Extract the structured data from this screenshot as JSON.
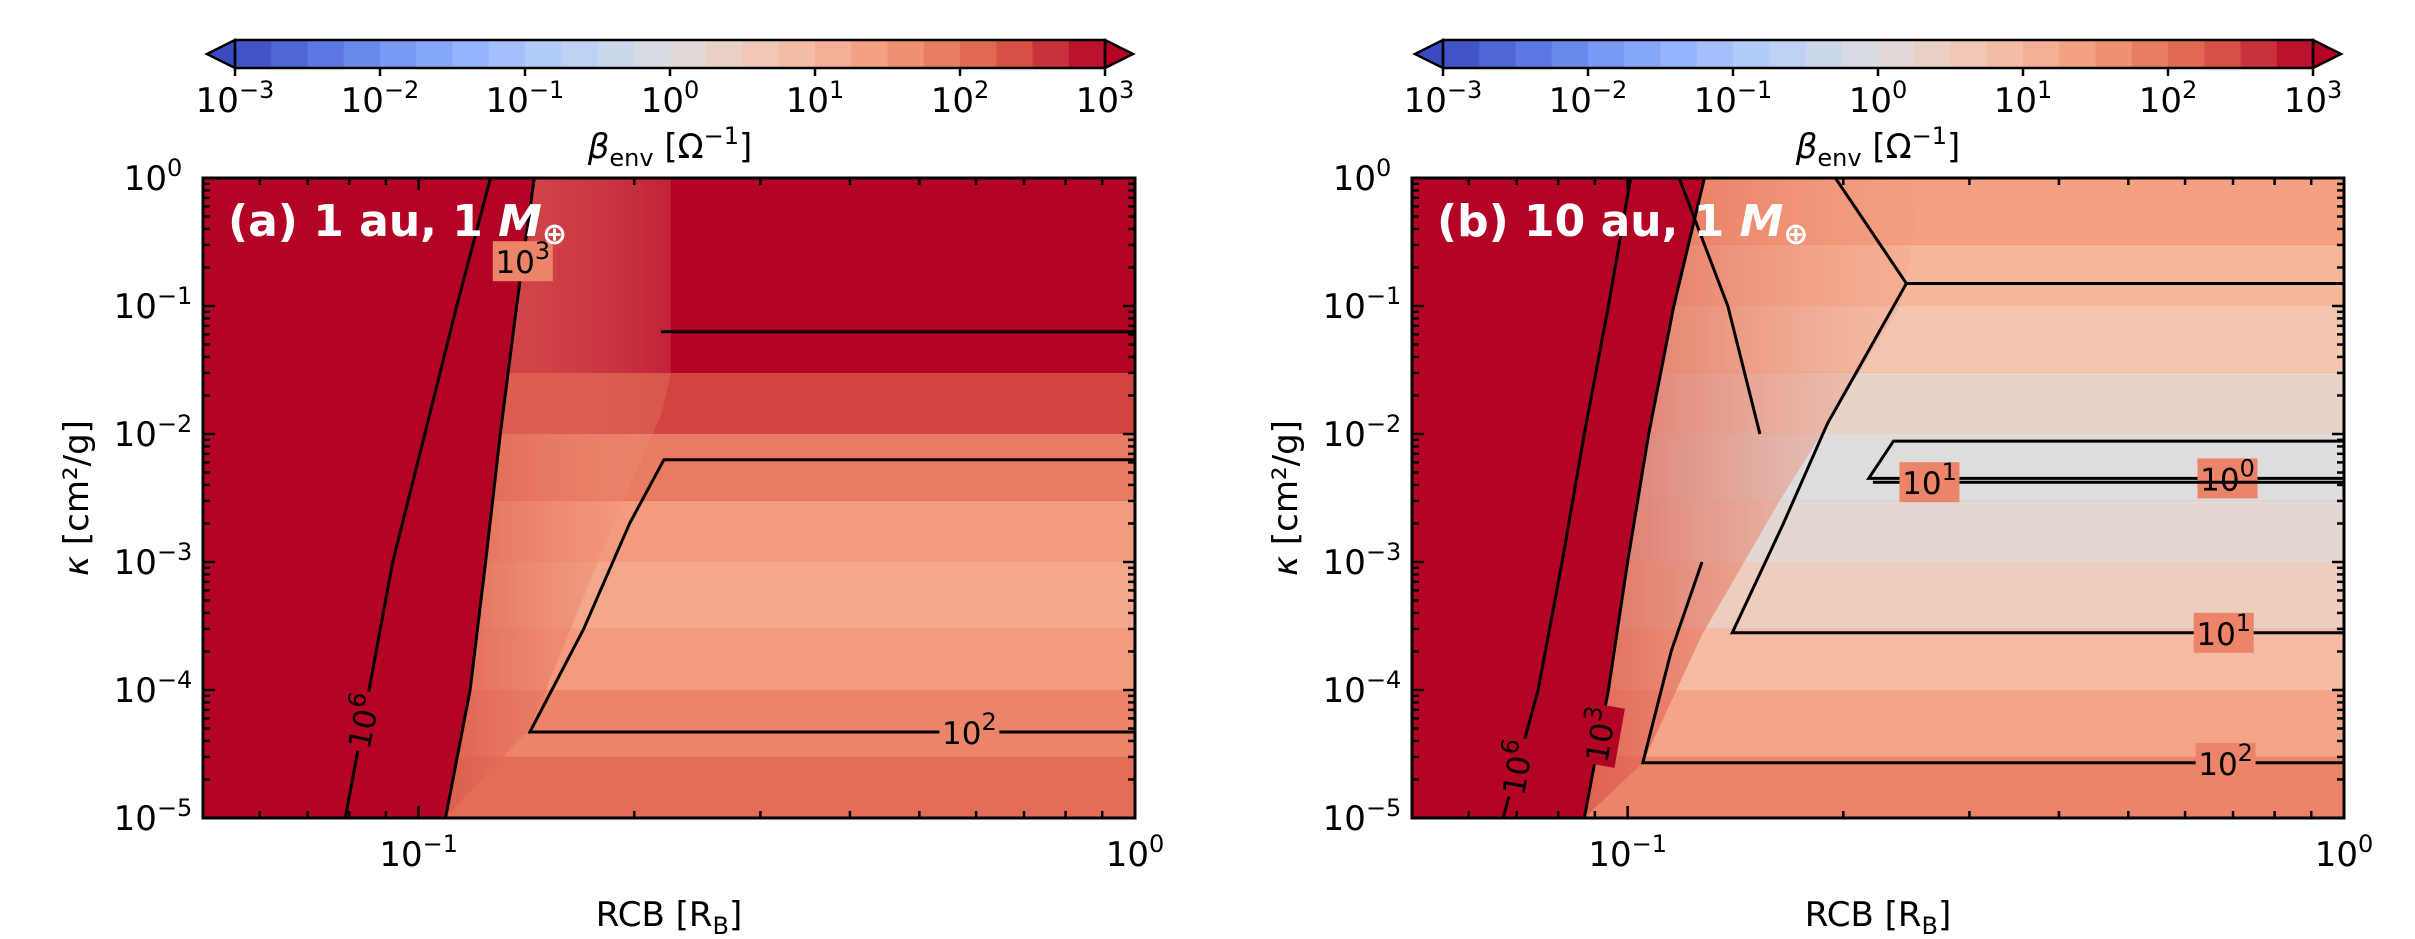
{
  "chart_data": [
    {
      "type": "heatmap",
      "title": "(a) 1 au, 1 M⊕",
      "xlabel": "RCB [R_B]",
      "ylabel": "κ [cm²/g]",
      "x_scale": "log",
      "y_scale": "log",
      "xlim": [
        0.05,
        1
      ],
      "ylim": [
        1e-05,
        1
      ],
      "x_ticks": [
        "10^-1",
        "10^0"
      ],
      "y_ticks": [
        "10^-5",
        "10^-4",
        "10^-3",
        "10^-2",
        "10^-1",
        "10^0"
      ],
      "colorbar": {
        "label": "β_env [Ω^-1]",
        "scale": "log",
        "range": [
          0.001,
          1000
        ],
        "ticks": [
          "10^-3",
          "10^-2",
          "10^-1",
          "10^0",
          "10^1",
          "10^2",
          "10^3"
        ],
        "colormap": "coolwarm",
        "extend": "both"
      },
      "boundaries": [
        {
          "name": "saturated-edge",
          "points": [
            [
              0.109,
              1e-05
            ],
            [
              0.118,
              0.0001
            ],
            [
              0.124,
              0.001
            ],
            [
              0.13,
              0.01
            ],
            [
              0.137,
              0.1
            ],
            [
              0.145,
              1
            ]
          ]
        },
        {
          "name": "plateau-edge",
          "points": [
            [
              0.143,
              5e-05
            ],
            [
              0.163,
              0.0003
            ],
            [
              0.187,
              0.002
            ],
            [
              0.218,
              0.014
            ],
            [
              0.225,
              0.03
            ],
            [
              0.225,
              1
            ]
          ]
        }
      ],
      "y_bands": [
        {
          "y_top": 1e-05,
          "beta": 200
        },
        {
          "y_top": 3e-05,
          "beta": 120
        },
        {
          "y_top": 0.0001,
          "beta": 60
        },
        {
          "y_top": 0.0003,
          "beta": 30
        },
        {
          "y_top": 0.001,
          "beta": 18
        },
        {
          "y_top": 0.003,
          "beta": 30
        },
        {
          "y_top": 0.01,
          "beta": 80
        },
        {
          "y_top": 0.03,
          "beta": 300
        },
        {
          "y_top": 1,
          "beta": 1000000
        }
      ],
      "contours": [
        {
          "label": "10^6",
          "label_at": 0.15,
          "label_rot": -78,
          "points": [
            [
              0.079,
              1e-05
            ],
            [
              0.092,
              0.001
            ],
            [
              0.102,
              0.01
            ],
            [
              0.113,
              0.1
            ],
            [
              0.126,
              1
            ]
          ]
        },
        {
          "label": "10^3",
          "label_at": 0.87,
          "label_rot": 0,
          "points": [
            [
              0.109,
              1e-05
            ],
            [
              0.118,
              0.0001
            ],
            [
              0.124,
              0.001
            ],
            [
              0.13,
              0.01
            ],
            [
              0.137,
              0.1
            ],
            [
              0.145,
              1
            ]
          ]
        },
        {
          "label": "",
          "points": [
            [
              0.218,
              0.063
            ],
            [
              1,
              0.063
            ]
          ]
        },
        {
          "label": "10^2",
          "label_at": 0.88,
          "label_rot": 0,
          "points": [
            [
              1,
              0.0063
            ],
            [
              0.22,
              0.0063
            ],
            [
              0.197,
              0.002
            ],
            [
              0.17,
              0.0003
            ],
            [
              0.143,
              4.7e-05
            ],
            [
              1,
              4.7e-05
            ]
          ]
        }
      ]
    },
    {
      "type": "heatmap",
      "title": "(b) 10 au, 1 M⊕",
      "xlabel": "RCB [R_B]",
      "ylabel": "κ [cm²/g]",
      "x_scale": "log",
      "y_scale": "log",
      "xlim": [
        0.05,
        1
      ],
      "ylim": [
        1e-05,
        1
      ],
      "x_ticks": [
        "10^-1",
        "10^0"
      ],
      "y_ticks": [
        "10^-5",
        "10^-4",
        "10^-3",
        "10^-2",
        "10^-1",
        "10^0"
      ],
      "colorbar": {
        "label": "β_env [Ω^-1]",
        "scale": "log",
        "range": [
          0.001,
          1000
        ],
        "ticks": [
          "10^-3",
          "10^-2",
          "10^-1",
          "10^0",
          "10^1",
          "10^2",
          "10^3"
        ],
        "colormap": "coolwarm",
        "extend": "both"
      },
      "boundaries": [
        {
          "name": "saturated-edge",
          "points": [
            [
              0.087,
              1e-05
            ],
            [
              0.094,
              0.0001
            ],
            [
              0.1,
              0.001
            ],
            [
              0.107,
              0.01
            ],
            [
              0.116,
              0.1
            ],
            [
              0.128,
              1
            ]
          ]
        },
        {
          "name": "plateau-edge",
          "points": [
            [
              0.105,
              2.7e-05
            ],
            [
              0.127,
              0.00027
            ],
            [
              0.163,
              0.003
            ],
            [
              0.195,
              0.015
            ],
            [
              0.24,
              0.1
            ],
            [
              0.26,
              1
            ]
          ]
        }
      ],
      "y_bands": [
        {
          "y_top": 1e-05,
          "beta": 120
        },
        {
          "y_top": 3e-05,
          "beta": 60
        },
        {
          "y_top": 0.0001,
          "beta": 20
        },
        {
          "y_top": 0.0003,
          "beta": 8
        },
        {
          "y_top": 0.001,
          "beta": 3
        },
        {
          "y_top": 0.003,
          "beta": 1.5
        },
        {
          "y_top": 0.01,
          "beta": 1
        },
        {
          "y_top": 0.03,
          "beta": 2
        },
        {
          "y_top": 0.1,
          "beta": 5
        },
        {
          "y_top": 0.3,
          "beta": 10
        },
        {
          "y_top": 1,
          "beta": 25
        }
      ],
      "contours": [
        {
          "label": "10^6",
          "label_at": 0.08,
          "label_rot": -80,
          "points": [
            [
              0.067,
              1e-05
            ],
            [
              0.075,
              0.0001
            ],
            [
              0.081,
              0.001
            ],
            [
              0.087,
              0.01
            ],
            [
              0.094,
              0.1
            ],
            [
              0.101,
              1
            ]
          ]
        },
        {
          "label": "10^3",
          "label_at": 0.13,
          "label_rot": -80,
          "points": [
            [
              0.087,
              1e-05
            ],
            [
              0.094,
              0.0001
            ],
            [
              0.1,
              0.001
            ],
            [
              0.107,
              0.01
            ],
            [
              0.116,
              0.1
            ],
            [
              0.128,
              1
            ]
          ]
        },
        {
          "label": "",
          "points": [
            [
              0.118,
              1
            ],
            [
              0.138,
              0.1
            ],
            [
              0.153,
              0.01
            ]
          ]
        },
        {
          "label": "",
          "points": [
            [
              0.195,
              1
            ],
            [
              0.245,
              0.15
            ],
            [
              1,
              0.15
            ]
          ]
        },
        {
          "label": "10^0",
          "label_at": 0.88,
          "label_rot": 0,
          "points": [
            [
              1,
              0.0088
            ],
            [
              0.235,
              0.0088
            ],
            [
              0.217,
              0.0045
            ],
            [
              1,
              0.0045
            ]
          ]
        },
        {
          "label": "10^1",
          "label_at": 0.88,
          "label_rot": 0,
          "points": [
            [
              1,
              0.0042
            ],
            [
              0.22,
              0.0042
            ]
          ]
        },
        {
          "label": "10^1",
          "label_at": 0.88,
          "label_rot": 0,
          "points": [
            [
              0.245,
              0.15
            ],
            [
              0.19,
              0.012
            ],
            [
              0.165,
              0.002
            ],
            [
              0.14,
              0.00028
            ],
            [
              1,
              0.00028
            ]
          ]
        },
        {
          "label": "10^2",
          "label_at": 0.87,
          "label_rot": 0,
          "points": [
            [
              0.127,
              0.001
            ],
            [
              0.115,
              0.0002
            ],
            [
              0.105,
              2.7e-05
            ],
            [
              1,
              2.7e-05
            ]
          ]
        }
      ]
    }
  ]
}
